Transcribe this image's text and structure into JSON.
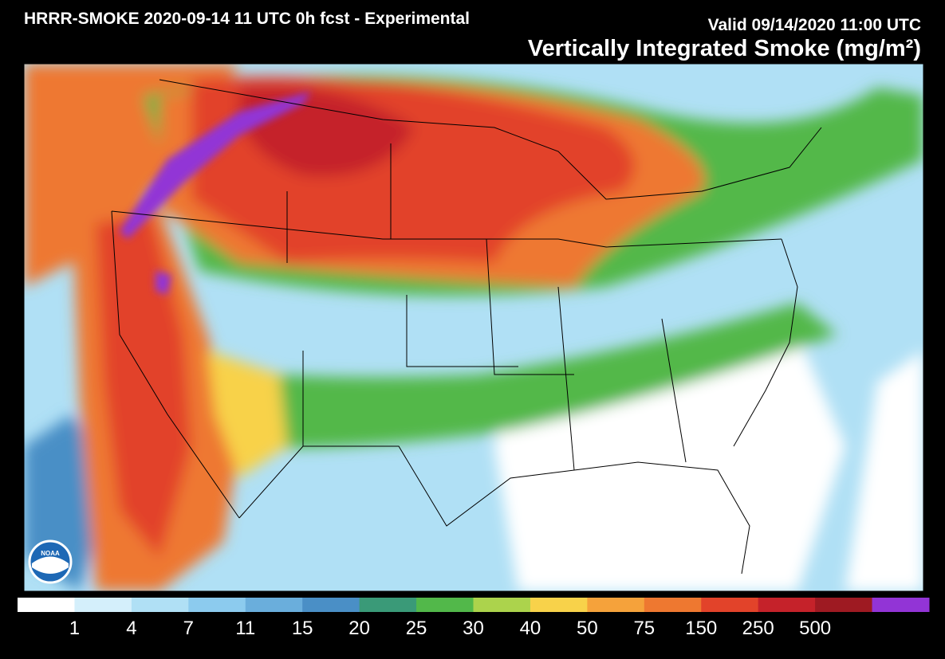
{
  "header": {
    "model_title": "HRRR-SMOKE 2020-09-14 11 UTC 0h fcst - Experimental",
    "valid_time": "Valid 09/14/2020 11:00 UTC",
    "product_title": "Vertically Integrated Smoke (mg/m²)"
  },
  "colorbar": {
    "levels": [
      1,
      4,
      7,
      11,
      15,
      20,
      25,
      30,
      40,
      50,
      75,
      150,
      250,
      500
    ],
    "colors": [
      "#ffffff",
      "#d4effb",
      "#b0e0f5",
      "#8ccbee",
      "#6aaedc",
      "#4a8fc6",
      "#3a9a78",
      "#52b84a",
      "#acd34c",
      "#f8d24a",
      "#f5a23b",
      "#ee7830",
      "#e2432a",
      "#c5222a",
      "#9e1a22",
      "#9234d6"
    ]
  },
  "logo": {
    "text": "NOAA"
  }
}
